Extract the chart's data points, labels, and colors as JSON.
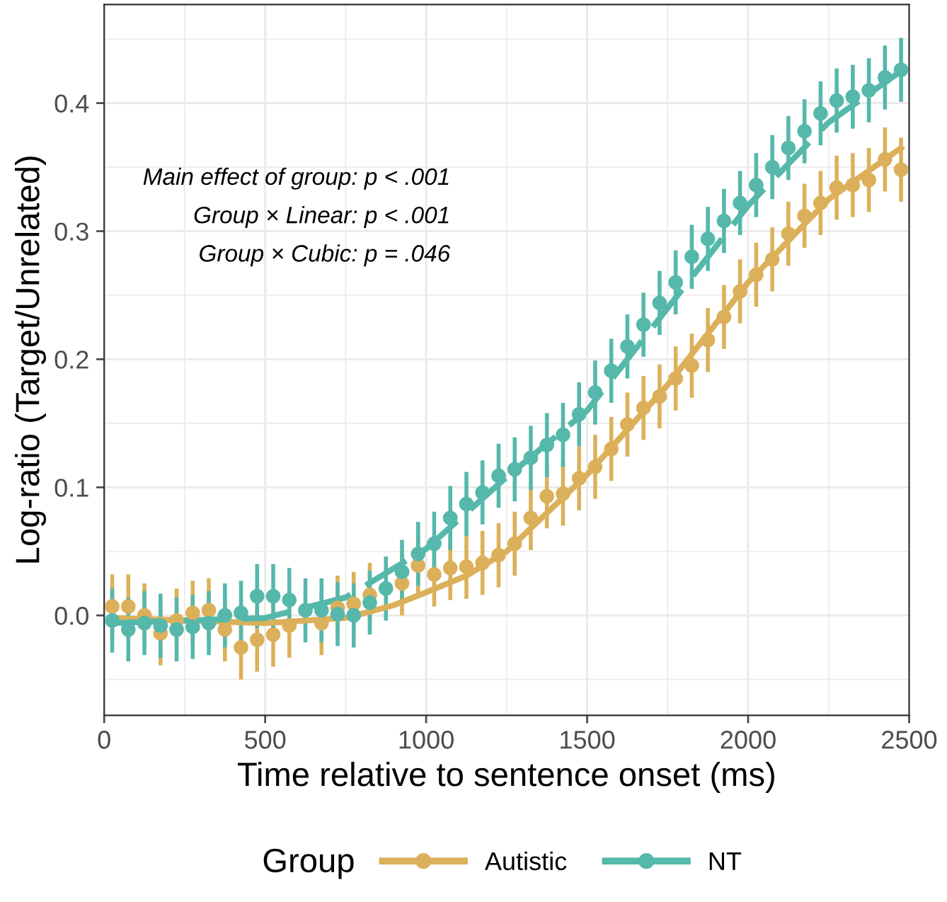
{
  "chart_data": {
    "type": "scatter",
    "xlabel": "Time relative to sentence onset (ms)",
    "ylabel": "Log-ratio (Target/Unrelated)",
    "legend_title": "Group",
    "annotations": [
      "Main effect of group: p < .001",
      "Group × Linear: p < .001",
      "Group × Cubic: p = .046"
    ],
    "x": [
      25,
      75,
      125,
      175,
      225,
      275,
      325,
      375,
      425,
      475,
      525,
      575,
      625,
      675,
      725,
      775,
      825,
      875,
      925,
      975,
      1025,
      1075,
      1125,
      1175,
      1225,
      1275,
      1325,
      1375,
      1425,
      1475,
      1525,
      1575,
      1625,
      1675,
      1725,
      1775,
      1825,
      1875,
      1925,
      1975,
      2025,
      2075,
      2125,
      2175,
      2225,
      2275,
      2325,
      2375,
      2425,
      2475
    ],
    "series": [
      {
        "name": "Autistic",
        "color": "#dcb05a",
        "marker": "circle",
        "values": [
          0.007,
          0.007,
          0.0,
          -0.014,
          -0.004,
          0.002,
          0.004,
          -0.011,
          -0.025,
          -0.019,
          -0.015,
          -0.008,
          null,
          -0.006,
          0.006,
          0.009,
          0.016,
          null,
          0.025,
          0.039,
          0.032,
          0.037,
          0.038,
          0.041,
          0.047,
          0.056,
          0.076,
          0.093,
          0.095,
          0.107,
          0.116,
          0.13,
          0.149,
          0.162,
          0.171,
          0.185,
          0.195,
          0.215,
          0.233,
          0.253,
          0.266,
          0.278,
          0.298,
          0.312,
          0.322,
          0.334,
          0.336,
          0.34,
          0.356,
          0.348
        ],
        "errors": [
          0.025,
          0.025,
          0.025,
          0.025,
          0.025,
          0.025,
          0.025,
          0.025,
          0.025,
          0.025,
          0.025,
          0.025,
          null,
          0.025,
          0.025,
          0.025,
          0.025,
          null,
          0.025,
          0.025,
          0.025,
          0.025,
          0.025,
          0.025,
          0.025,
          0.025,
          0.025,
          0.025,
          0.025,
          0.025,
          0.025,
          0.025,
          0.025,
          0.025,
          0.025,
          0.025,
          0.025,
          0.025,
          0.025,
          0.025,
          0.025,
          0.025,
          0.025,
          0.025,
          0.025,
          0.025,
          0.025,
          0.025,
          0.025,
          0.025
        ]
      },
      {
        "name": "NT",
        "color": "#55b8ab",
        "marker": "circle",
        "values": [
          -0.004,
          -0.011,
          -0.006,
          -0.008,
          -0.011,
          -0.009,
          -0.006,
          0.0,
          0.002,
          0.015,
          0.015,
          0.012,
          0.004,
          0.004,
          0.001,
          0.0,
          0.01,
          0.021,
          0.034,
          0.048,
          0.056,
          0.076,
          0.087,
          0.096,
          0.109,
          0.114,
          0.123,
          0.133,
          0.141,
          0.157,
          0.174,
          0.191,
          0.21,
          0.227,
          0.244,
          0.26,
          0.28,
          0.294,
          0.308,
          0.322,
          0.336,
          0.35,
          0.365,
          0.378,
          0.392,
          0.402,
          0.405,
          0.41,
          0.42,
          0.426
        ],
        "errors": [
          0.025,
          0.025,
          0.025,
          0.025,
          0.025,
          0.025,
          0.025,
          0.025,
          0.025,
          0.025,
          0.025,
          0.025,
          0.025,
          0.025,
          0.025,
          0.025,
          0.025,
          0.025,
          0.025,
          0.025,
          0.025,
          0.025,
          0.025,
          0.025,
          0.025,
          0.025,
          0.025,
          0.025,
          0.025,
          0.025,
          0.025,
          0.025,
          0.025,
          0.025,
          0.025,
          0.025,
          0.025,
          0.025,
          0.025,
          0.025,
          0.025,
          0.025,
          0.025,
          0.025,
          0.025,
          0.025,
          0.025,
          0.025,
          0.025,
          0.025
        ]
      },
      {
        "type": "line",
        "color": "#dcb05a",
        "line_style": "solid",
        "x": [
          25,
          250,
          500,
          750,
          900,
          1000,
          1125,
          1250,
          1500,
          1750,
          2000,
          2250,
          2475
        ],
        "values": [
          -0.002,
          -0.004,
          -0.006,
          -0.002,
          0.008,
          0.018,
          0.031,
          0.05,
          0.11,
          0.18,
          0.26,
          0.325,
          0.365
        ]
      },
      {
        "type": "line",
        "color": "#55b8ab",
        "line_style": "dashed",
        "x": [
          25,
          250,
          500,
          750,
          1000,
          1250,
          1500,
          1750,
          2000,
          2250,
          2475
        ],
        "values": [
          -0.006,
          -0.004,
          -0.002,
          0.014,
          0.052,
          0.108,
          0.16,
          0.24,
          0.32,
          0.385,
          0.425
        ]
      }
    ],
    "xlim": [
      0,
      2500
    ],
    "xticks": [
      0,
      500,
      1000,
      1500,
      2000,
      2500
    ],
    "ylim": [
      -0.078,
      0.477
    ],
    "yticks": [
      {
        "value": 0,
        "label": "0.0"
      },
      0.1,
      0.2,
      0.3,
      0.4
    ],
    "grid": true,
    "legend": "bottom"
  }
}
